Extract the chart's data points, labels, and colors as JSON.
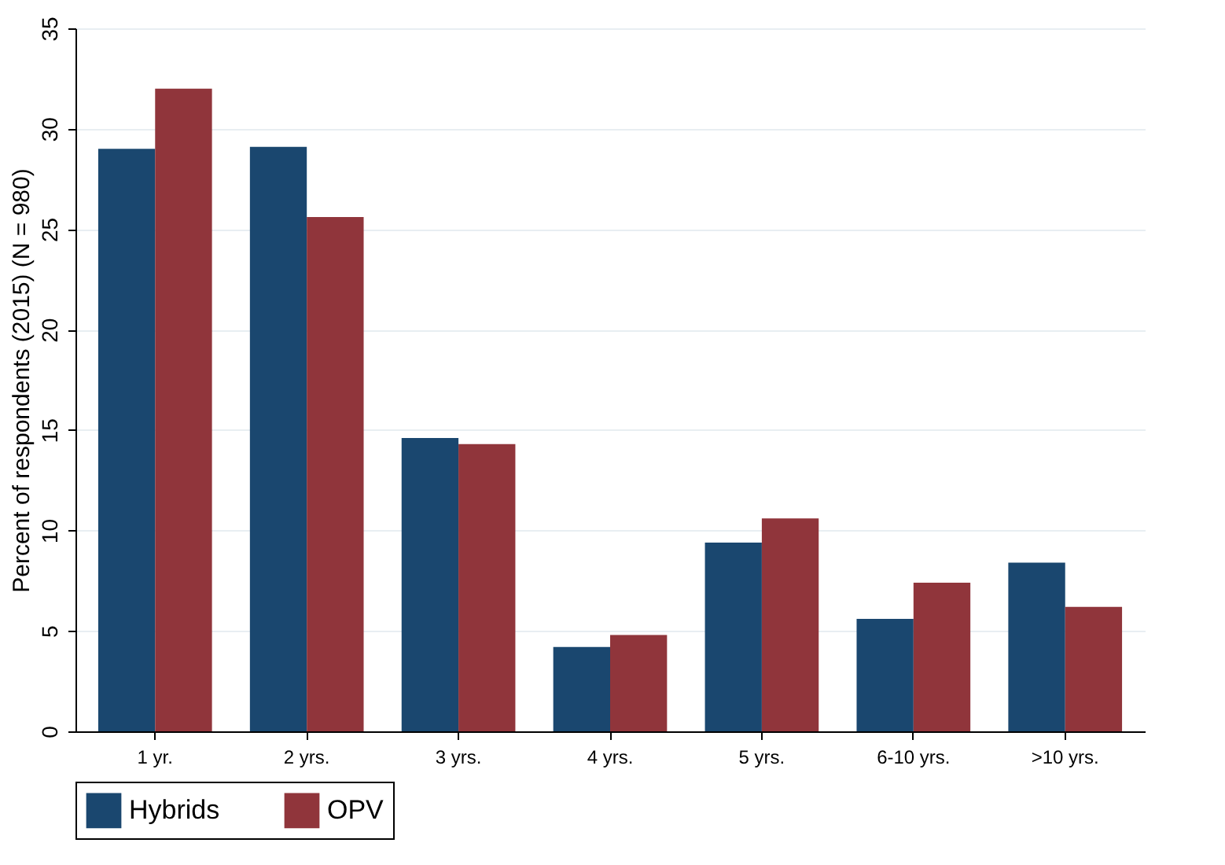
{
  "chart_data": {
    "type": "bar",
    "ylabel": "Percent of respondents (2015) (N = 980)",
    "categories": [
      "1 yr.",
      "2 yrs.",
      "3 yrs.",
      "4 yrs.",
      "5 yrs.",
      "6-10 yrs.",
      ">10 yrs."
    ],
    "series": [
      {
        "name": "Hybrids",
        "color": "#1a476f",
        "values": [
          29.0,
          29.1,
          14.6,
          4.2,
          9.4,
          5.6,
          8.4
        ]
      },
      {
        "name": "OPV",
        "color": "#90353b",
        "values": [
          32.0,
          25.6,
          14.3,
          4.8,
          10.6,
          7.4,
          6.2
        ]
      }
    ],
    "ylim": [
      0,
      35
    ],
    "yticks": [
      0,
      5,
      10,
      15,
      20,
      25,
      30,
      35
    ],
    "grid": "y",
    "legend": "bottom"
  }
}
